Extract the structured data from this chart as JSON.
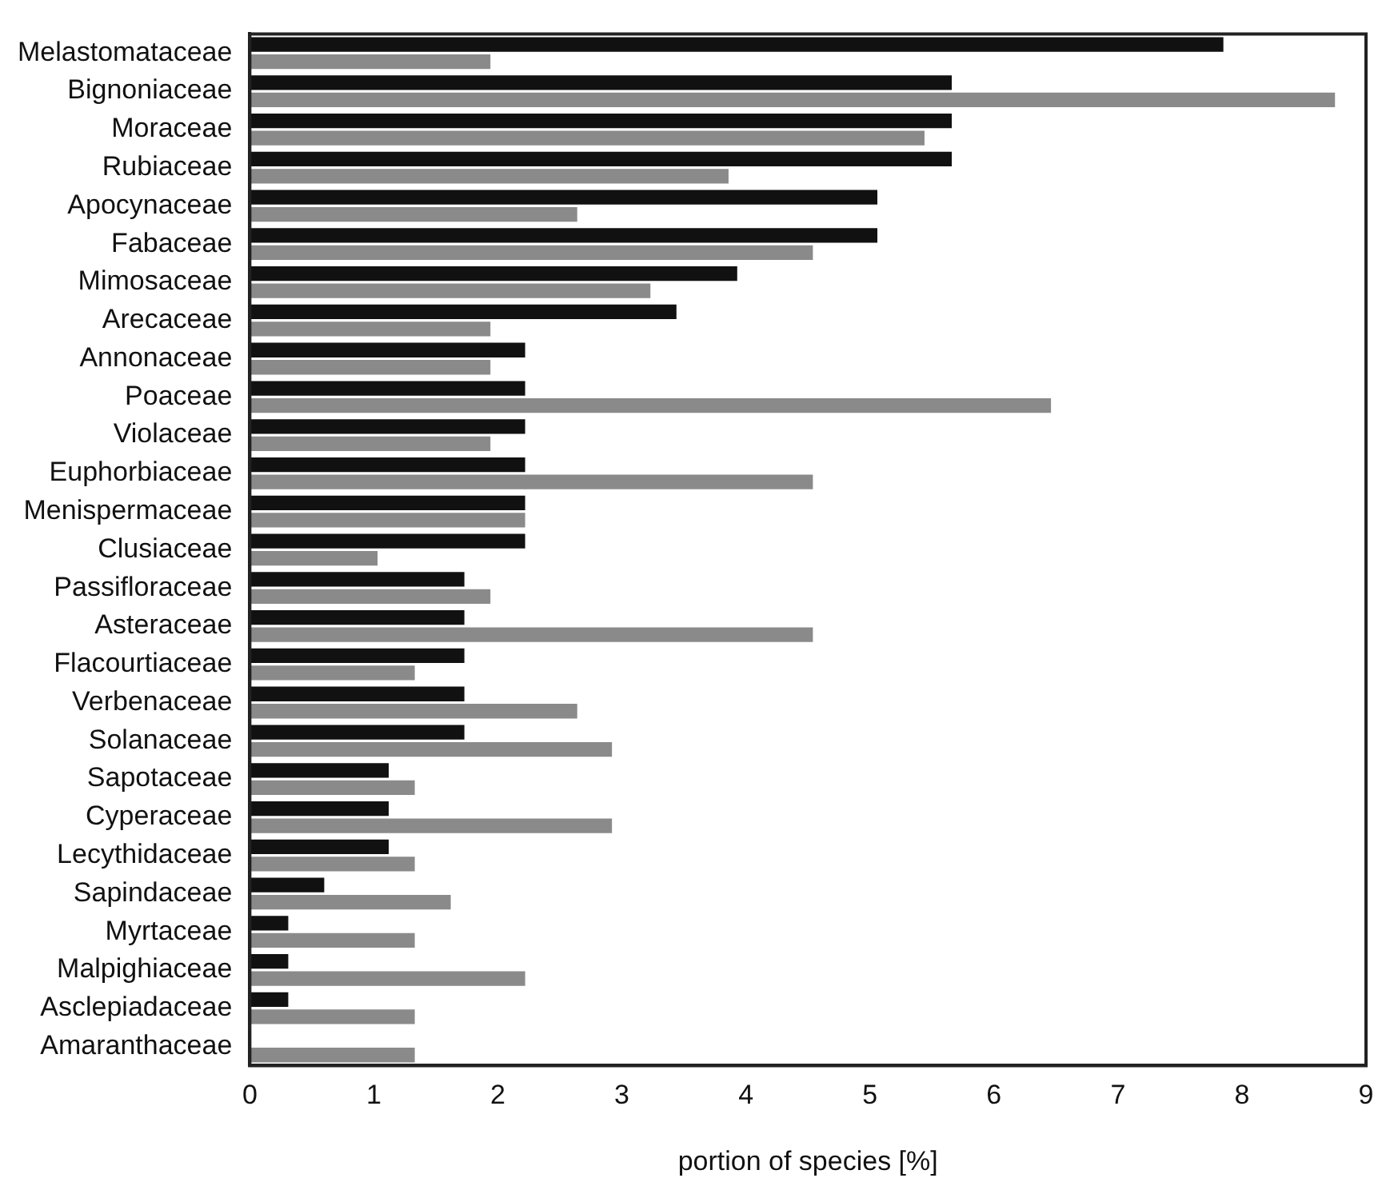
{
  "chart_data": {
    "type": "bar",
    "orientation": "horizontal",
    "xlabel": "portion of species [%]",
    "categories": [
      "Melastomataceae",
      "Bignoniaceae",
      "Moraceae",
      "Rubiaceae",
      "Apocynaceae",
      "Fabaceae",
      "Mimosaceae",
      "Arecaceae",
      "Annonaceae",
      "Poaceae",
      "Violaceae",
      "Euphorbiaceae",
      "Menispermaceae",
      "Clusiaceae",
      "Passifloraceae",
      "Asteraceae",
      "Flacourtiaceae",
      "Verbenaceae",
      "Solanaceae",
      "Sapotaceae",
      "Cyperaceae",
      "Lecythidaceae",
      "Sapindaceae",
      "Myrtaceae",
      "Malpighiaceae",
      "Asclepiadaceae",
      "Amaranthaceae"
    ],
    "series": [
      {
        "color": "#111111",
        "values": [
          7.85,
          5.66,
          5.66,
          5.66,
          5.06,
          5.06,
          3.93,
          3.44,
          2.22,
          2.22,
          2.22,
          2.22,
          2.22,
          2.22,
          1.73,
          1.73,
          1.73,
          1.73,
          1.73,
          1.12,
          1.12,
          1.12,
          0.6,
          0.31,
          0.31,
          0.31,
          0
        ]
      },
      {
        "color": "#8a8a8a",
        "values": [
          1.94,
          8.75,
          5.44,
          3.86,
          2.64,
          4.54,
          3.23,
          1.94,
          1.94,
          6.46,
          1.94,
          4.54,
          2.22,
          1.03,
          1.94,
          4.54,
          1.33,
          2.64,
          2.92,
          1.33,
          2.92,
          1.33,
          1.62,
          1.33,
          2.22,
          1.33,
          1.33
        ]
      }
    ],
    "xlim": [
      0,
      9
    ],
    "xticks": [
      0,
      1,
      2,
      3,
      4,
      5,
      6,
      7,
      8,
      9
    ],
    "grid": false,
    "legend": false
  }
}
